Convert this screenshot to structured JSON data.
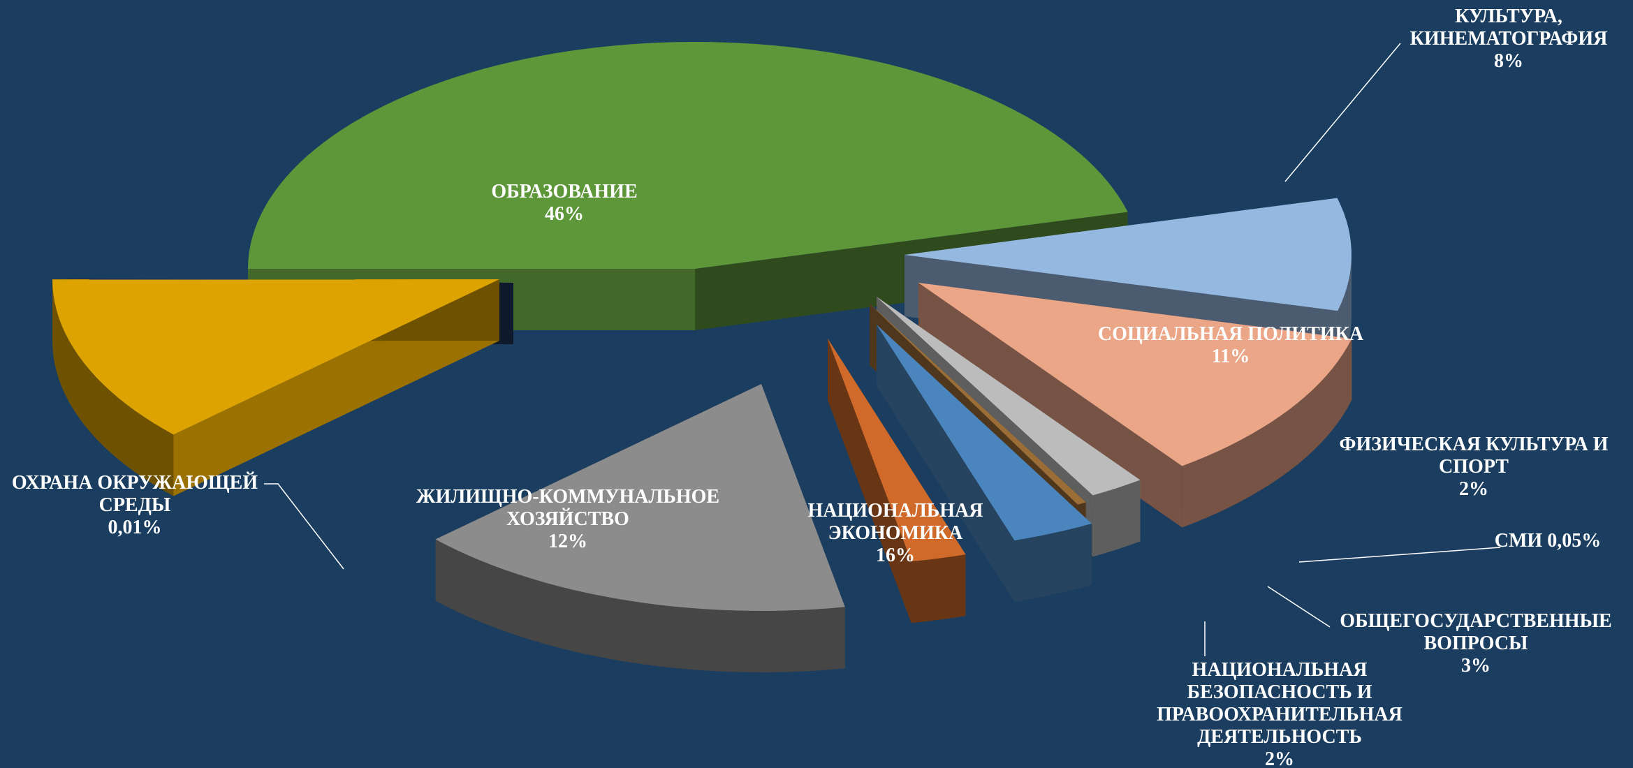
{
  "chart_data": {
    "type": "pie",
    "style": "3d-exploded",
    "legend": "none",
    "slices": [
      {
        "label_lines": [
          "ОБРАЗОВАНИЕ"
        ],
        "value_label": "46%",
        "value": 46,
        "color": "#5e963a"
      },
      {
        "label_lines": [
          "КУЛЬТУРА,",
          "КИНЕМАТОГРАФИЯ"
        ],
        "value_label": "8%",
        "value": 8,
        "color": "#95b8e0"
      },
      {
        "label_lines": [
          "СОЦИАЛЬНАЯ ПОЛИТИКА"
        ],
        "value_label": "11%",
        "value": 11,
        "color": "#eba587"
      },
      {
        "label_lines": [
          "ФИЗИЧЕСКАЯ КУЛЬТУРА И",
          "СПОРТ"
        ],
        "value_label": "2%",
        "value": 2,
        "color": "#bcbcbc"
      },
      {
        "label_lines": [
          "СМИ 0,05%"
        ],
        "value_label": "",
        "value": 0.05,
        "color": "#9b6e37"
      },
      {
        "label_lines": [
          "ОБЩЕГОСУДАРСТВЕННЫЕ",
          "ВОПРОСЫ"
        ],
        "value_label": "3%",
        "value": 3,
        "color": "#4b85be"
      },
      {
        "label_lines": [
          "НАЦИОНАЛЬНАЯ",
          "БЕЗОПАСНОСТЬ И",
          "ПРАВООХРАНИТЕЛЬНАЯ",
          "ДЕЯТЕЛЬНОСТЬ"
        ],
        "value_label": "2%",
        "value": 2,
        "color": "#cf6a2a"
      },
      {
        "label_lines": [
          "НАЦИОНАЛЬНАЯ",
          "ЭКОНОМИКА"
        ],
        "value_label": "16%",
        "value": 16,
        "color": "#8c8c8c"
      },
      {
        "label_lines": [
          "ЖИЛИЩНО-КОММУНАЛЬНОЕ",
          "ХОЗЯЙСТВО"
        ],
        "value_label": "12%",
        "value": 12,
        "color": "#dda301"
      },
      {
        "label_lines": [
          "ОХРАНА ОКРУЖАЮЩЕЙ",
          "СРЕДЫ"
        ],
        "value_label": "0,01%",
        "value": 0.01,
        "color": "#1e3258"
      }
    ]
  }
}
